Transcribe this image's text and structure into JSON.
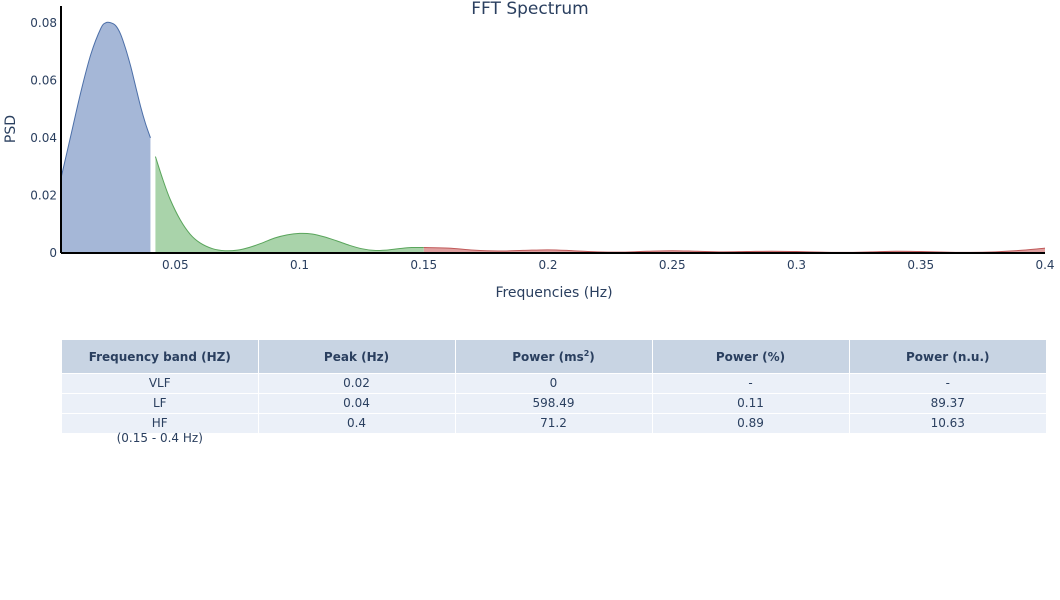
{
  "chart_data": {
    "type": "area",
    "title": "FFT Spectrum",
    "xlabel": "Frequencies (Hz)",
    "ylabel": "PSD",
    "xlim": [
      0.004,
      0.4
    ],
    "ylim": [
      0,
      0.082
    ],
    "x_ticks": [
      {
        "value": 0.05,
        "label": "0.05"
      },
      {
        "value": 0.1,
        "label": "0.1"
      },
      {
        "value": 0.15,
        "label": "0.15"
      },
      {
        "value": 0.2,
        "label": "0.2"
      },
      {
        "value": 0.25,
        "label": "0.25"
      },
      {
        "value": 0.3,
        "label": "0.3"
      },
      {
        "value": 0.35,
        "label": "0.35"
      },
      {
        "value": 0.4,
        "label": "0.4"
      }
    ],
    "y_ticks": [
      {
        "value": 0,
        "label": "0"
      },
      {
        "value": 0.02,
        "label": "0.02"
      },
      {
        "value": 0.04,
        "label": "0.04"
      },
      {
        "value": 0.06,
        "label": "0.06"
      },
      {
        "value": 0.08,
        "label": "0.08"
      }
    ],
    "series": [
      {
        "color": "#a5b7d7",
        "line_color": "#4c6fa8",
        "x": [
          0.004,
          0.008,
          0.012,
          0.016,
          0.02,
          0.022,
          0.024,
          0.026,
          0.028,
          0.03,
          0.032,
          0.034,
          0.036,
          0.038,
          0.04
        ],
        "y": [
          0.026,
          0.041,
          0.056,
          0.069,
          0.078,
          0.08,
          0.08,
          0.079,
          0.076,
          0.071,
          0.065,
          0.058,
          0.051,
          0.045,
          0.04
        ]
      },
      {
        "color": "#a9d3aa",
        "line_color": "#5aa55c",
        "x": [
          0.042,
          0.045,
          0.048,
          0.052,
          0.056,
          0.06,
          0.065,
          0.07,
          0.075,
          0.08,
          0.085,
          0.09,
          0.095,
          0.1,
          0.105,
          0.11,
          0.115,
          0.12,
          0.125,
          0.13,
          0.135,
          0.14,
          0.145,
          0.15
        ],
        "y": [
          0.0335,
          0.0255,
          0.0185,
          0.0115,
          0.0065,
          0.0035,
          0.0015,
          0.0008,
          0.001,
          0.002,
          0.0035,
          0.0052,
          0.0063,
          0.0068,
          0.0066,
          0.0056,
          0.0042,
          0.0027,
          0.0015,
          0.0009,
          0.001,
          0.0015,
          0.0019,
          0.0019
        ]
      },
      {
        "color": "#e0a0a0",
        "line_color": "#c05a5a",
        "x": [
          0.15,
          0.16,
          0.17,
          0.18,
          0.19,
          0.2,
          0.21,
          0.22,
          0.23,
          0.24,
          0.25,
          0.26,
          0.27,
          0.28,
          0.29,
          0.3,
          0.31,
          0.32,
          0.33,
          0.34,
          0.35,
          0.36,
          0.37,
          0.38,
          0.39,
          0.4
        ],
        "y": [
          0.0019,
          0.0017,
          0.001,
          0.0007,
          0.0009,
          0.0011,
          0.0008,
          0.0004,
          0.0003,
          0.0006,
          0.0008,
          0.0006,
          0.0004,
          0.0005,
          0.0006,
          0.0005,
          0.0003,
          0.0002,
          0.0004,
          0.0006,
          0.0005,
          0.0003,
          0.0002,
          0.0004,
          0.0009,
          0.0017
        ]
      }
    ]
  },
  "table": {
    "headers": [
      "Frequency band (HZ)",
      "Peak (Hz)",
      "Power (ms",
      "Power (%)",
      "Power (n.u.)"
    ],
    "power_sup": "2",
    "power_close": ")",
    "rows": [
      {
        "band": "VLF",
        "peak": "0.02",
        "power": "0",
        "percent": "-",
        "nu": "-"
      },
      {
        "band": "LF",
        "peak": "0.04",
        "power": "598.49",
        "percent": "0.11",
        "nu": "89.37"
      },
      {
        "band": "HF",
        "band_range": "(0.15 - 0.4 Hz)",
        "peak": "0.4",
        "power": "71.2",
        "percent": "0.89",
        "nu": "10.63"
      }
    ]
  }
}
